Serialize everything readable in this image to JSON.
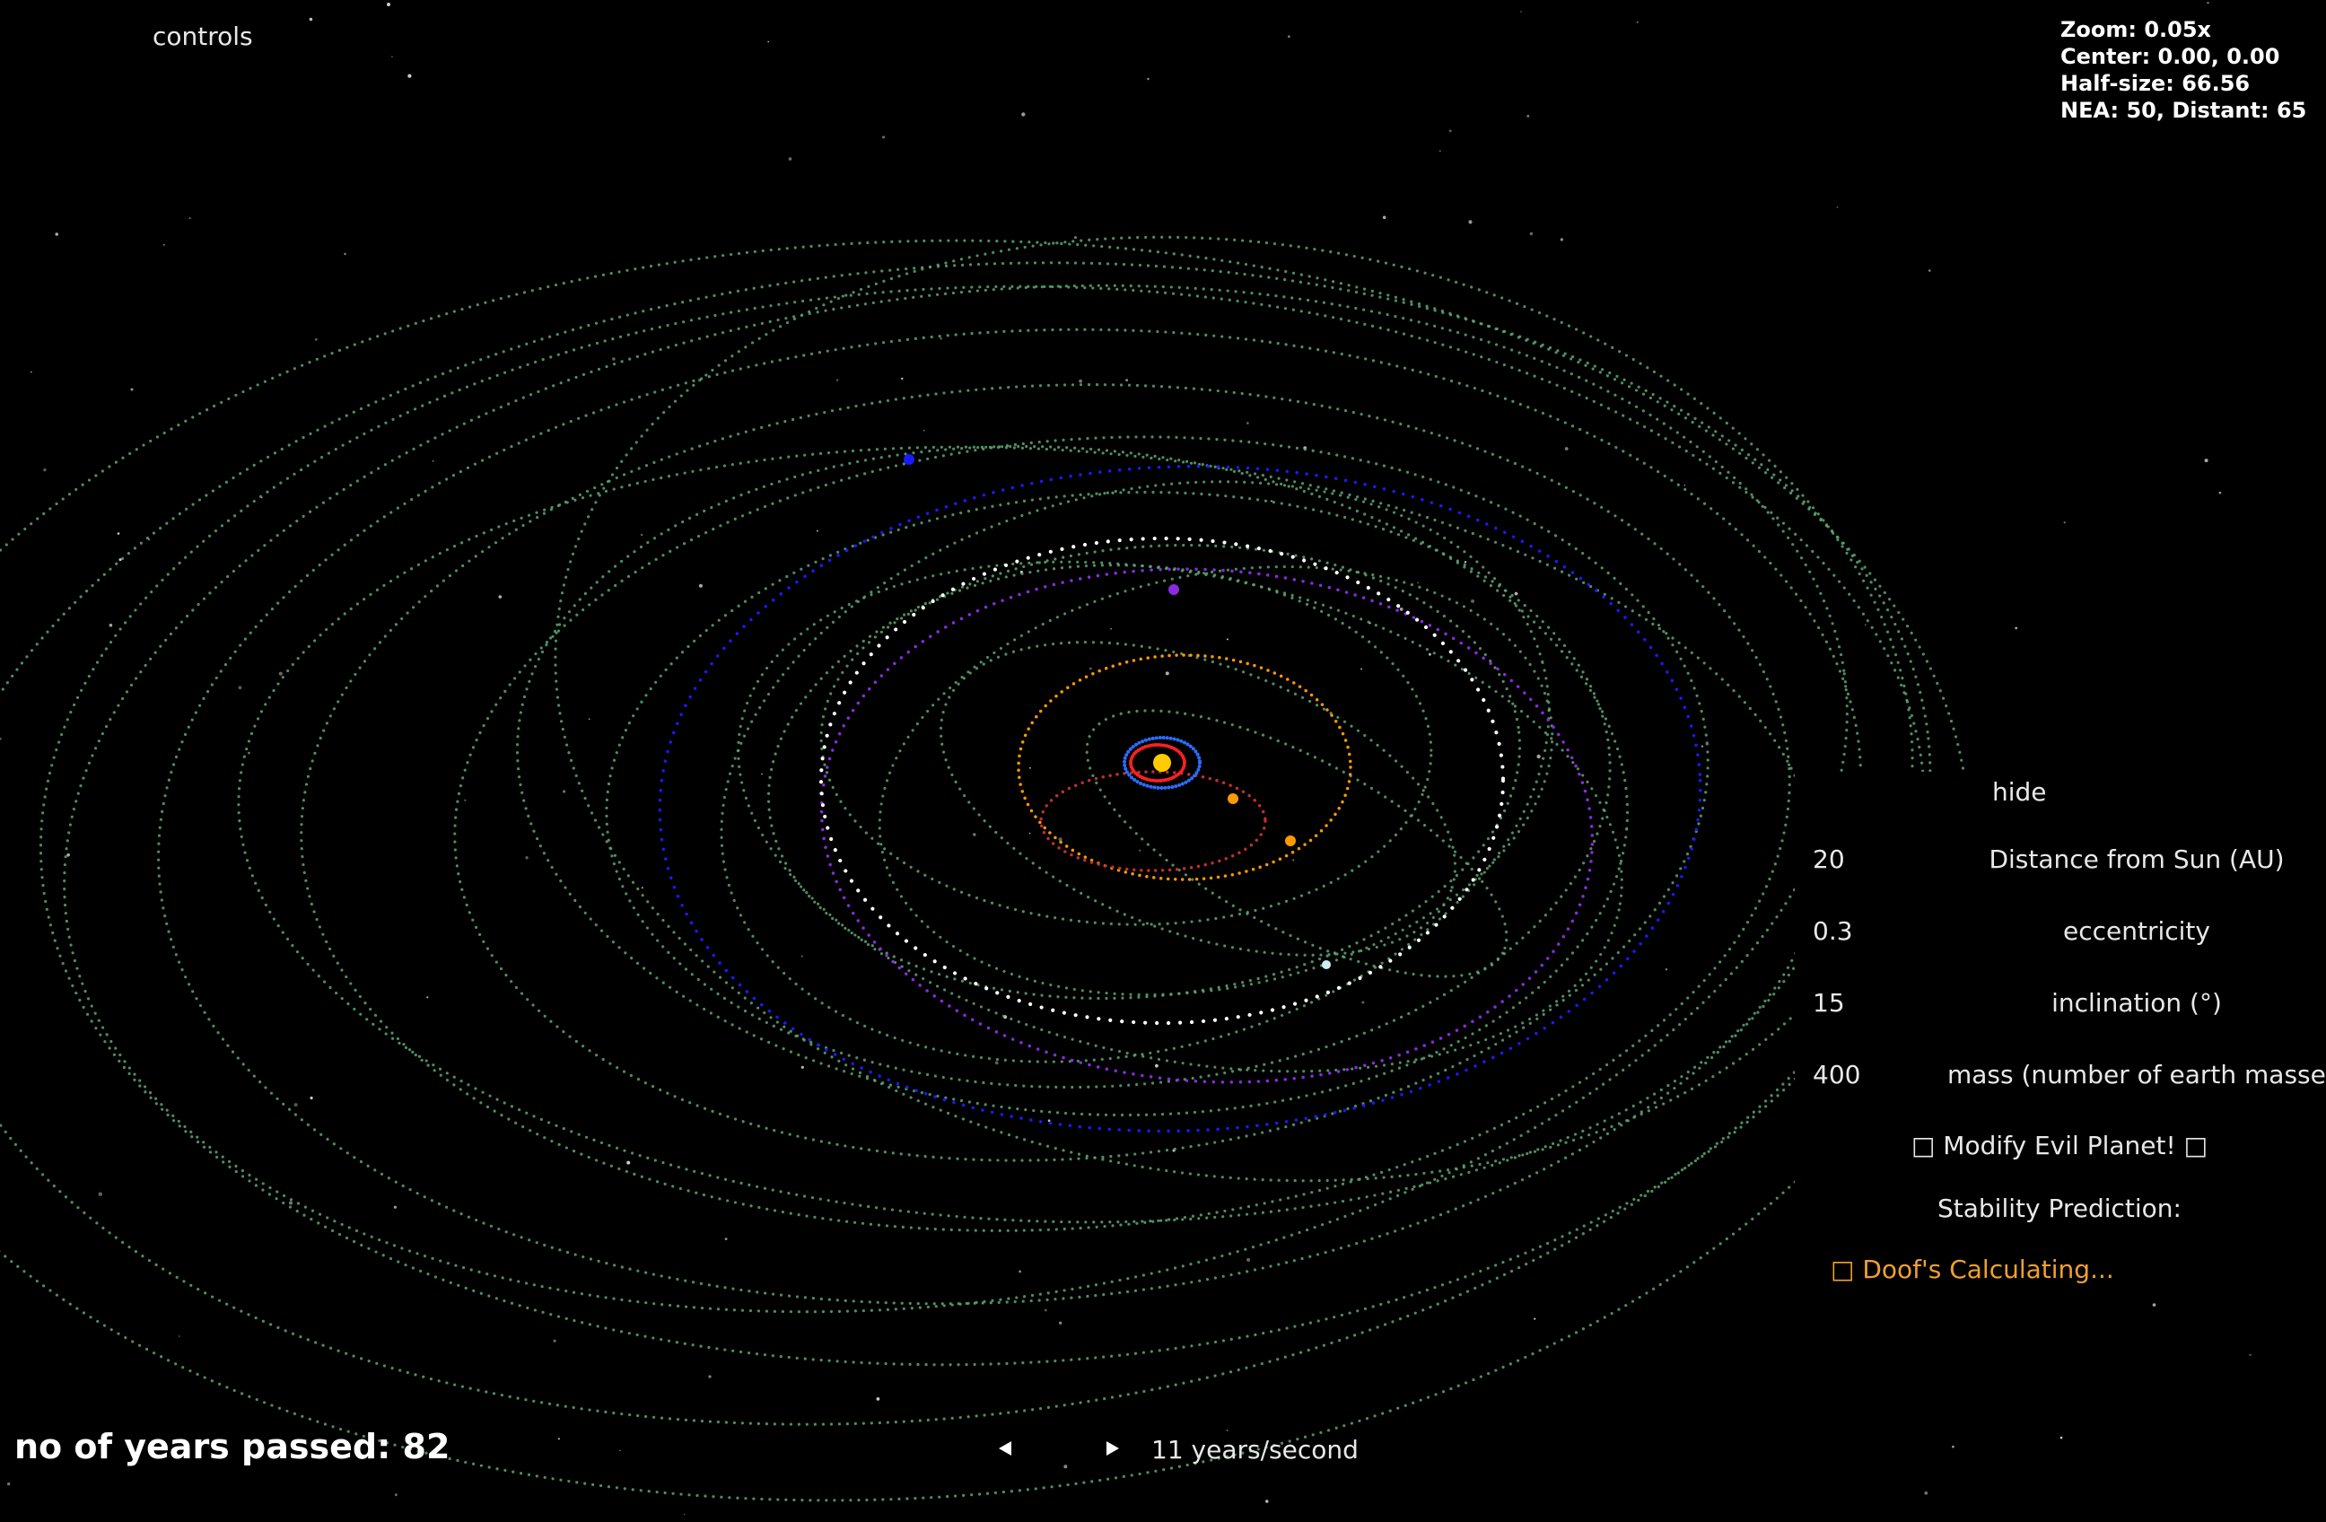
{
  "controls": {
    "toggle_label": "controls"
  },
  "hud": {
    "zoom": "Zoom: 0.05x",
    "center": "Center: 0.00, 0.00",
    "half_size": "Half-size: 66.56",
    "counts": "NEA: 50, Distant: 65"
  },
  "years": {
    "label": "no of years passed: 82"
  },
  "speed": {
    "prev_icon": "triangle-left-icon",
    "next_icon": "triangle-right-icon",
    "label": "11 years/second"
  },
  "panel": {
    "hide_label": "hide",
    "params": [
      {
        "value": "20",
        "label": "Distance from Sun (AU)"
      },
      {
        "value": "0.3",
        "label": "eccentricity"
      },
      {
        "value": "15",
        "label": "inclination (°)"
      },
      {
        "value": "400",
        "label": "mass (number of earth masses)"
      }
    ],
    "modify_button": "□ Modify Evil Planet! □",
    "stability_title": "Stability Prediction:",
    "stability_status": "□ Doof's Calculating...",
    "status_color": "#f0a030"
  },
  "colors": {
    "background": "#000000",
    "asteroid_orbit": "#5aa872",
    "saturn_orbit": "#ffffff",
    "uranus_orbit": "#8a2be2",
    "neptune_orbit": "#1a1aff",
    "jupiter_orbit": "#ff9900",
    "mars_orbit": "#c0302a",
    "sun": "#ffcc00"
  }
}
